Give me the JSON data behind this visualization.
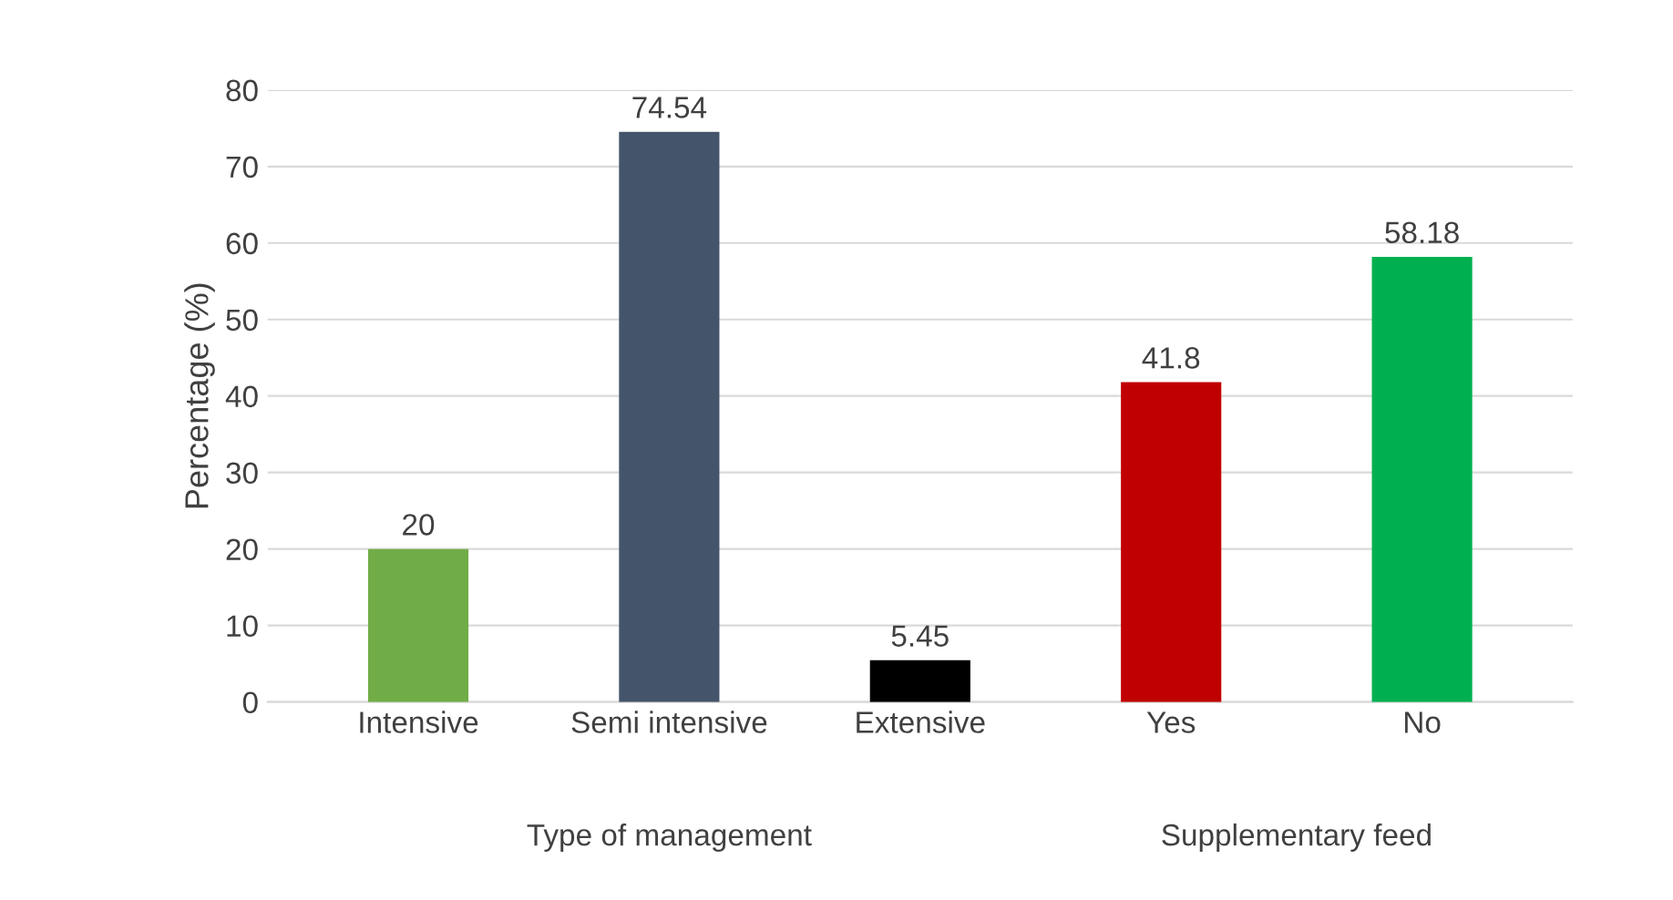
{
  "chart_data": {
    "type": "bar",
    "ylabel": "Percentage (%)",
    "categories": [
      "Intensive",
      "Semi intensive",
      "Extensive",
      "Yes",
      "No"
    ],
    "values": [
      20,
      74.54,
      5.45,
      41.8,
      58.18
    ],
    "colors": [
      "#70ad47",
      "#44546a",
      "#000000",
      "#c00000",
      "#00b050"
    ],
    "ylim": [
      0,
      80
    ],
    "yticks": [
      0,
      10,
      20,
      30,
      40,
      50,
      60,
      70,
      80
    ],
    "grid": "y",
    "data_labels": true,
    "annotations": [
      "Type of management",
      "Supplementary feed"
    ]
  }
}
